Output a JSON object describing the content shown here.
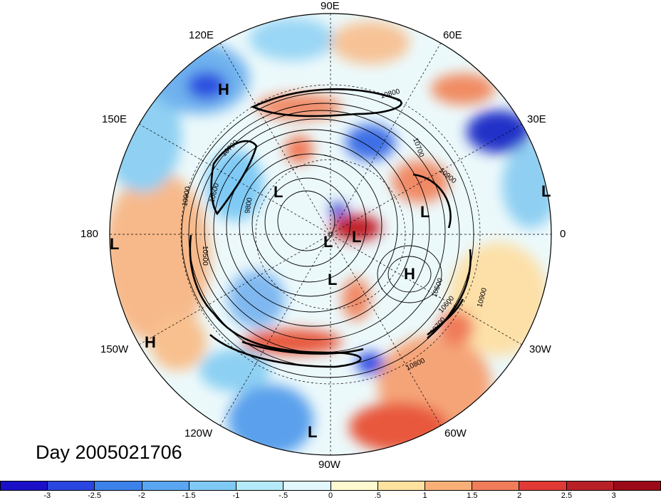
{
  "map": {
    "longitude_labels": {
      "lon_90e": "90E",
      "lon_60e": "60E",
      "lon_30e": "30E",
      "lon_0": "0",
      "lon_30w": "30W",
      "lon_60w": "60W",
      "lon_90w": "90W",
      "lon_120w": "120W",
      "lon_150w": "150W",
      "lon_180": "180",
      "lon_150e": "150E",
      "lon_120e": "120E"
    },
    "contour_labels": [
      "10800",
      "10700",
      "10900",
      "10600",
      "10500",
      "10700",
      "10800",
      "10900",
      "9800",
      "10700",
      "10600",
      "10500",
      "10900"
    ],
    "pressure_systems": [
      "H",
      "L",
      "L",
      "L",
      "L",
      "L",
      "H",
      "L",
      "H",
      "L",
      "L"
    ],
    "day_label": "Day 2005021706"
  },
  "colorbar": {
    "tick_labels": [
      "-3",
      "-2.5",
      "-2",
      "-1.5",
      "-1",
      "-.5",
      "0",
      ".5",
      "1",
      "1.5",
      "2",
      "2.5",
      "3"
    ],
    "colors": [
      "#1a10c8",
      "#2a46e0",
      "#3c82ea",
      "#5aa6f0",
      "#7fcaf5",
      "#b4eafa",
      "#e2f8fd",
      "#fffbd0",
      "#fde2a0",
      "#f8b078",
      "#f07c5a",
      "#e03a36",
      "#b82028",
      "#9a0a18"
    ]
  }
}
